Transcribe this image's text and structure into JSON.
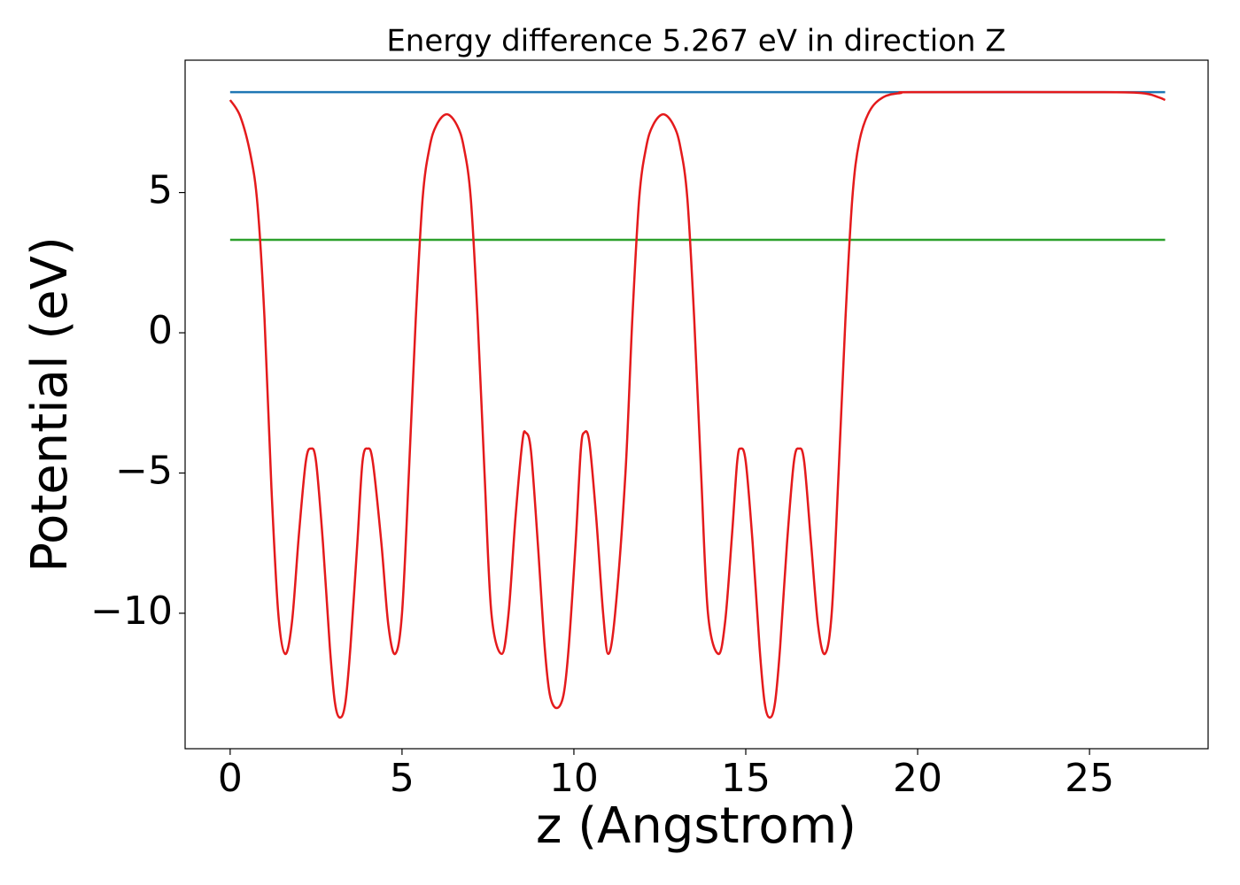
{
  "chart_data": {
    "type": "line",
    "title": "Energy difference 5.267 eV in direction Z",
    "xlabel": "z (Angstrom)",
    "ylabel": "Potential (eV)",
    "xlim": [
      -1.31,
      28.45
    ],
    "ylim": [
      -14.83,
      9.72
    ],
    "xticks": [
      0,
      5,
      10,
      15,
      20,
      25
    ],
    "yticks": [
      {
        "value": -10,
        "label": "−10"
      },
      {
        "value": -5,
        "label": "−5"
      },
      0,
      5
    ],
    "series": [
      {
        "color": "#1f77b4",
        "x": [
          0,
          27.2
        ],
        "values": [
          8.58,
          8.58
        ]
      },
      {
        "color": "#2ca02c",
        "x": [
          0,
          27.2
        ],
        "values": [
          3.313,
          3.313
        ]
      },
      {
        "color": "#e41a1c",
        "x": [
          0,
          0.3,
          0.6,
          0.8,
          1.0,
          1.2,
          1.4,
          1.6,
          1.8,
          2.0,
          2.2,
          2.35,
          2.5,
          2.7,
          2.9,
          3.05,
          3.2,
          3.35,
          3.5,
          3.7,
          3.85,
          4.0,
          4.15,
          4.4,
          4.6,
          4.8,
          5.0,
          5.2,
          5.4,
          5.6,
          5.8,
          6.0,
          6.3,
          6.6,
          6.8,
          7.0,
          7.2,
          7.4,
          7.6,
          7.9,
          8.1,
          8.3,
          8.5,
          8.6,
          8.75,
          8.95,
          9.15,
          9.3,
          9.5,
          9.7,
          9.85,
          10.05,
          10.2,
          10.3,
          10.45,
          10.65,
          10.85,
          11.0,
          11.2,
          11.5,
          11.7,
          11.9,
          12.1,
          12.3,
          12.6,
          12.9,
          13.1,
          13.3,
          13.5,
          13.7,
          13.9,
          14.2,
          14.4,
          14.6,
          14.75,
          14.85,
          15.0,
          15.2,
          15.4,
          15.55,
          15.7,
          15.85,
          16.0,
          16.2,
          16.4,
          16.55,
          16.7,
          16.9,
          17.1,
          17.3,
          17.5,
          17.7,
          17.9,
          18.1,
          18.3,
          18.6,
          19.0,
          19.5,
          20,
          25,
          26.5,
          27.0,
          27.2
        ],
        "values": [
          8.3,
          7.7,
          6.3,
          4.5,
          0.5,
          -5.5,
          -10.0,
          -11.45,
          -10.3,
          -7.2,
          -4.6,
          -4.13,
          -4.6,
          -7.5,
          -11.2,
          -13.2,
          -13.72,
          -13.2,
          -11.2,
          -7.5,
          -4.6,
          -4.13,
          -4.6,
          -7.5,
          -10.4,
          -11.45,
          -10.0,
          -5.0,
          0.5,
          4.8,
          6.6,
          7.4,
          7.79,
          7.4,
          6.6,
          4.8,
          0.5,
          -5.0,
          -10.0,
          -11.45,
          -10.0,
          -6.6,
          -3.9,
          -3.56,
          -4.2,
          -7.5,
          -11.2,
          -12.9,
          -13.38,
          -12.9,
          -11.2,
          -7.5,
          -4.2,
          -3.56,
          -3.9,
          -6.6,
          -10.0,
          -11.45,
          -10.0,
          -5.0,
          0.5,
          4.8,
          6.6,
          7.4,
          7.79,
          7.4,
          6.6,
          4.8,
          0.5,
          -5.0,
          -10.0,
          -11.45,
          -10.3,
          -7.2,
          -4.6,
          -4.13,
          -4.6,
          -7.5,
          -11.2,
          -13.2,
          -13.72,
          -13.2,
          -11.2,
          -7.5,
          -4.6,
          -4.13,
          -4.6,
          -7.5,
          -10.4,
          -11.45,
          -10.0,
          -5.0,
          0.5,
          4.8,
          6.8,
          7.9,
          8.4,
          8.55,
          8.58,
          8.58,
          8.55,
          8.4,
          8.3
        ]
      }
    ]
  }
}
